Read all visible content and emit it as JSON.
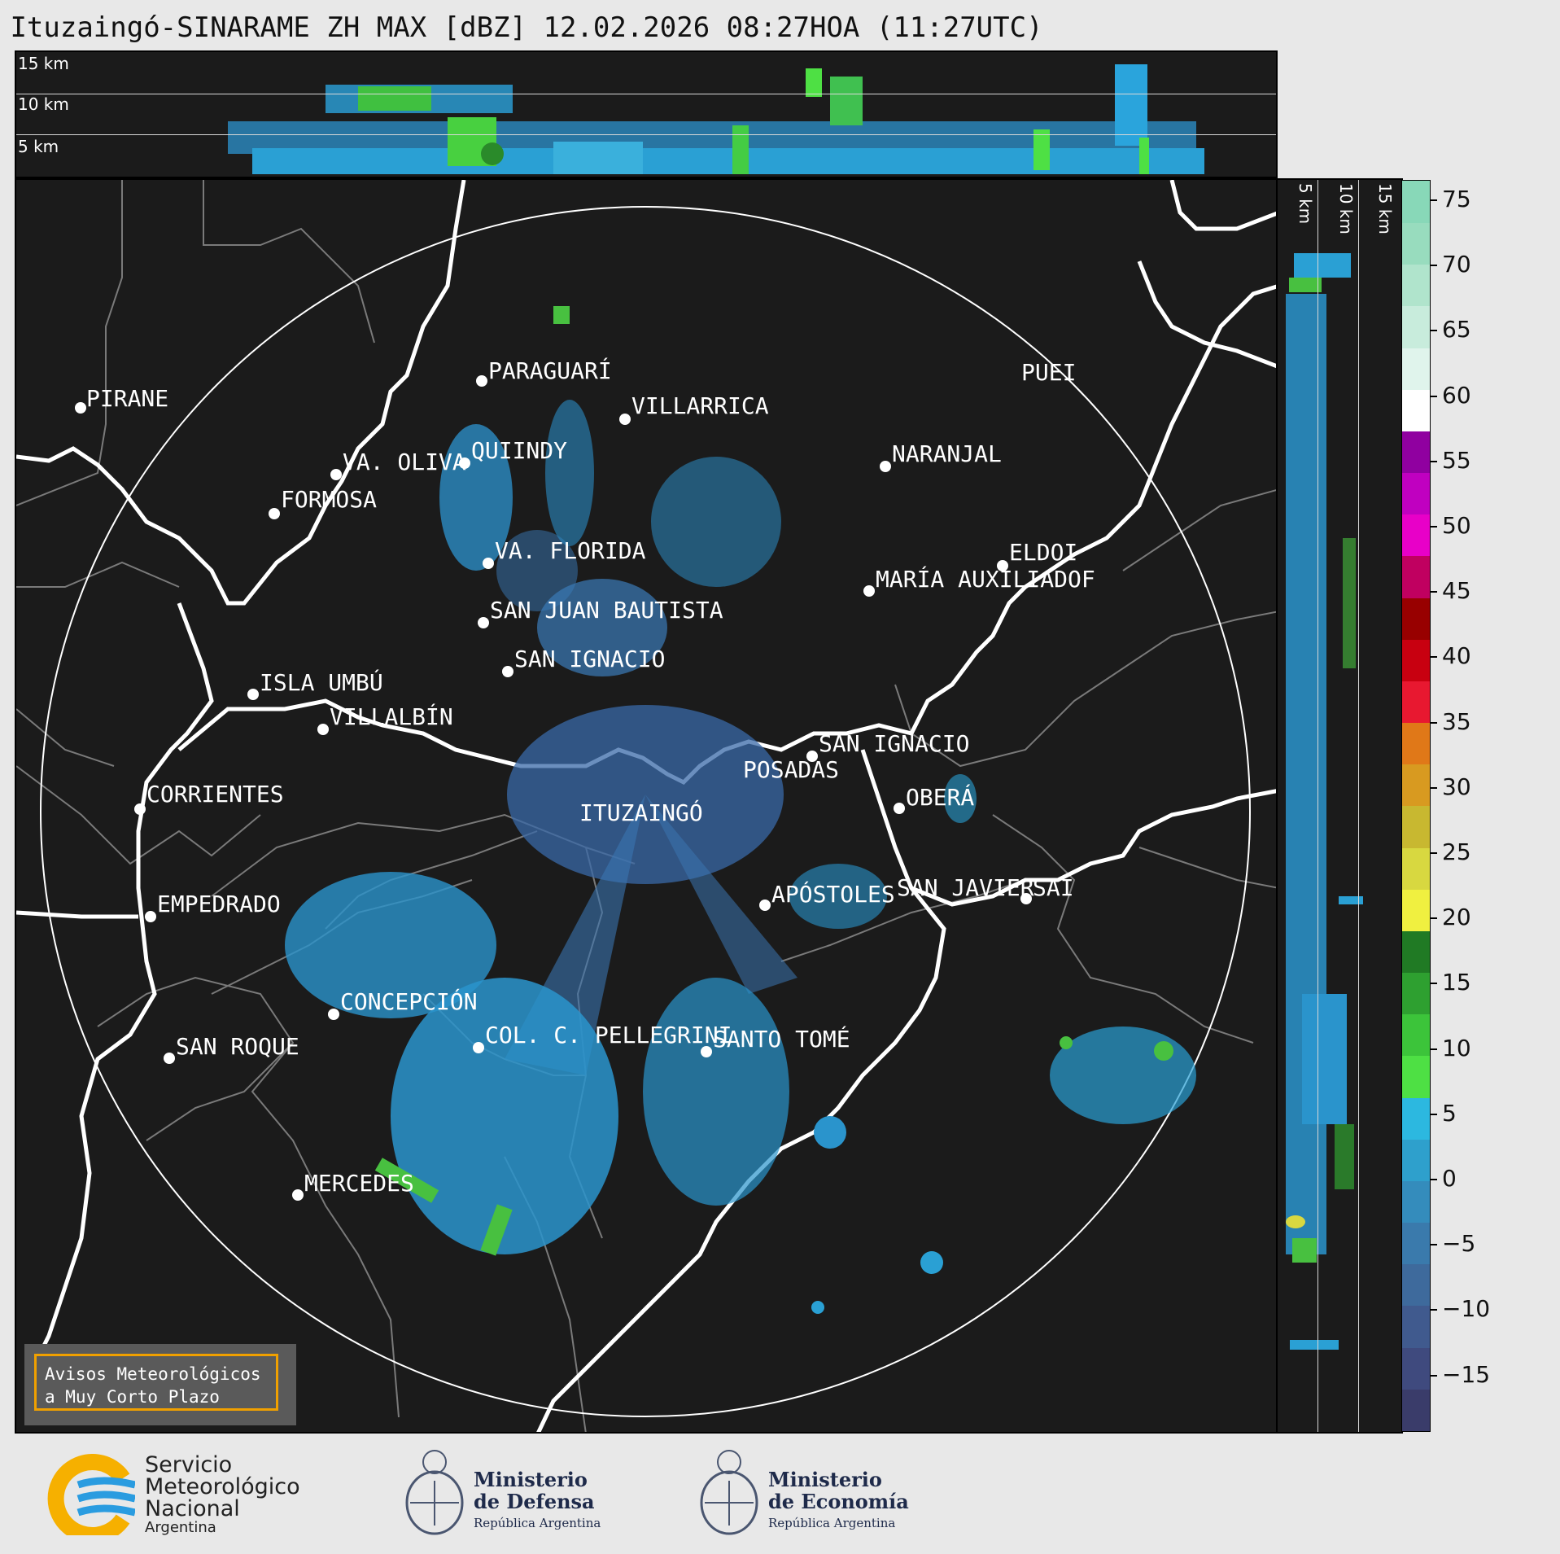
{
  "title": "Ituzaingó-SINARAME ZH MAX [dBZ] 12.02.2026 08:27HOA (11:27UTC)",
  "top_panel": {
    "height_labels": [
      "15 km",
      "10 km",
      "5 km"
    ]
  },
  "side_panel": {
    "height_labels": [
      "5 km",
      "10 km",
      "15 km"
    ]
  },
  "cities": [
    {
      "name": "PIRANE"
    },
    {
      "name": "PARAGUARÍ"
    },
    {
      "name": "VILLARRICA"
    },
    {
      "name": "QUIINDY"
    },
    {
      "name": "VA. OLIVA"
    },
    {
      "name": "FORMOSA"
    },
    {
      "name": "NARANJAL"
    },
    {
      "name": "PUEI"
    },
    {
      "name": "VA. FLORIDA"
    },
    {
      "name": "ELDOI"
    },
    {
      "name": "MARÍA AUXILIADOF"
    },
    {
      "name": "SAN JUAN BAUTISTA"
    },
    {
      "name": "SAN IGNACIO"
    },
    {
      "name": "ISLA UMBÚ"
    },
    {
      "name": "VILLALBÍN"
    },
    {
      "name": "SAN IGNACIO"
    },
    {
      "name": "POSADAS"
    },
    {
      "name": "CORRIENTES"
    },
    {
      "name": "ITUZAINGÓ"
    },
    {
      "name": "OBERÁ"
    },
    {
      "name": "APÓSTOLES"
    },
    {
      "name": "SAN JAVIER"
    },
    {
      "name": "SAI"
    },
    {
      "name": "EMPEDRADO"
    },
    {
      "name": "CONCEPCIÓN"
    },
    {
      "name": "COL. C. PELLEGRINI"
    },
    {
      "name": "SANTO TOMÉ"
    },
    {
      "name": "SAN ROQUE"
    },
    {
      "name": "MERCEDES"
    }
  ],
  "notice": {
    "line1": "Avisos Meteorológicos",
    "line2": "a Muy Corto Plazo"
  },
  "colorbar": {
    "unit": "dBZ",
    "ticks": [
      "75",
      "70",
      "65",
      "60",
      "55",
      "50",
      "45",
      "40",
      "35",
      "30",
      "25",
      "20",
      "15",
      "10",
      "5",
      "0",
      "−5",
      "−10",
      "−15"
    ],
    "stops": [
      {
        "color": "#3a3c6a"
      },
      {
        "color": "#3f4a7e"
      },
      {
        "color": "#405a8e"
      },
      {
        "color": "#3e6a9c"
      },
      {
        "color": "#3a7aac"
      },
      {
        "color": "#348cbc"
      },
      {
        "color": "#2ea0cc"
      },
      {
        "color": "#2cb8e0"
      },
      {
        "color": "#4ee044"
      },
      {
        "color": "#3cc43a"
      },
      {
        "color": "#2ea030"
      },
      {
        "color": "#207a24"
      },
      {
        "color": "#f0f040"
      },
      {
        "color": "#d8d840"
      },
      {
        "color": "#c8b830"
      },
      {
        "color": "#d89a20"
      },
      {
        "color": "#e07818"
      },
      {
        "color": "#e81830"
      },
      {
        "color": "#c80010"
      },
      {
        "color": "#980000"
      },
      {
        "color": "#c00060"
      },
      {
        "color": "#e800c8"
      },
      {
        "color": "#c000c0"
      },
      {
        "color": "#9000a0"
      },
      {
        "color": "#ffffff"
      },
      {
        "color": "#e0f4ec"
      },
      {
        "color": "#c8ecdc"
      },
      {
        "color": "#b0e4cc"
      },
      {
        "color": "#98dcbe"
      },
      {
        "color": "#88d8b8"
      }
    ]
  },
  "logos": {
    "smn": {
      "line1": "Servicio",
      "line2": "Meteorológico",
      "line3": "Nacional",
      "line4": "Argentina"
    },
    "defensa": {
      "line1": "Ministerio",
      "line2": "de Defensa",
      "line3": "República Argentina"
    },
    "economia": {
      "line1": "Ministerio",
      "line2": "de Economía",
      "line3": "República Argentina"
    }
  }
}
